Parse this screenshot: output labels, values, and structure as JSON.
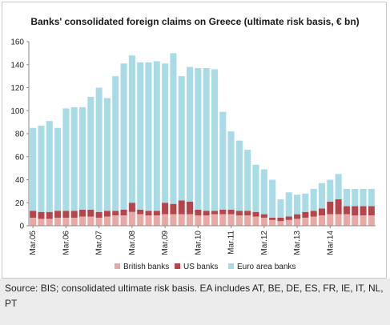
{
  "chart_data": {
    "type": "bar",
    "stacked": true,
    "title": "Banks' consolidated foreign claims on Greece (ultimate risk basis, € bn)",
    "ylim": [
      0,
      160
    ],
    "yticks": [
      0,
      20,
      40,
      60,
      80,
      100,
      120,
      140,
      160
    ],
    "x_tick_labels": [
      {
        "label": "Mar.05",
        "index": 0
      },
      {
        "label": "Mar.06",
        "index": 4
      },
      {
        "label": "Mar.07",
        "index": 8
      },
      {
        "label": "Mar.08",
        "index": 12
      },
      {
        "label": "Mar.09",
        "index": 16
      },
      {
        "label": "Mar.10",
        "index": 20
      },
      {
        "label": "Mar.11",
        "index": 24
      },
      {
        "label": "Mar.12",
        "index": 28
      },
      {
        "label": "Mar.13",
        "index": 32
      },
      {
        "label": "Mar.14",
        "index": 36
      }
    ],
    "series": [
      {
        "name": "British banks",
        "color": "#e8a9a4",
        "values": [
          7,
          6,
          6,
          7,
          7,
          7,
          8,
          8,
          7,
          8,
          9,
          9,
          12,
          10,
          9,
          9,
          10,
          10,
          10,
          10,
          9,
          9,
          10,
          10,
          10,
          9,
          9,
          8,
          7,
          5,
          4,
          5,
          6,
          7,
          8,
          9,
          10,
          10,
          10,
          9,
          9,
          9
        ]
      },
      {
        "name": "US banks",
        "color": "#b5454b",
        "values": [
          6,
          6,
          6,
          6,
          6,
          6,
          6,
          6,
          5,
          5,
          4,
          5,
          8,
          4,
          4,
          4,
          10,
          9,
          12,
          11,
          5,
          4,
          3,
          4,
          4,
          4,
          4,
          4,
          3,
          2,
          3,
          3,
          4,
          5,
          5,
          6,
          11,
          13,
          7,
          8,
          8,
          8
        ]
      },
      {
        "name": "Euro area banks",
        "color": "#a9dbe6",
        "values": [
          72,
          75,
          79,
          72,
          89,
          90,
          89,
          98,
          108,
          98,
          117,
          127,
          128,
          128,
          129,
          130,
          121,
          131,
          108,
          117,
          123,
          124,
          123,
          85,
          68,
          61,
          53,
          41,
          39,
          33,
          16,
          21,
          17,
          16,
          19,
          22,
          19,
          22,
          15,
          15,
          15,
          15
        ]
      }
    ],
    "legend": [
      "British banks",
      "US banks",
      "Euro area banks"
    ],
    "legend_position": "bottom",
    "grid": false
  },
  "footer": {
    "source": "Source: BIS; consolidated ultimate risk basis. EA includes AT, BE, DE, ES, FR, IE, IT, NL, PT"
  }
}
